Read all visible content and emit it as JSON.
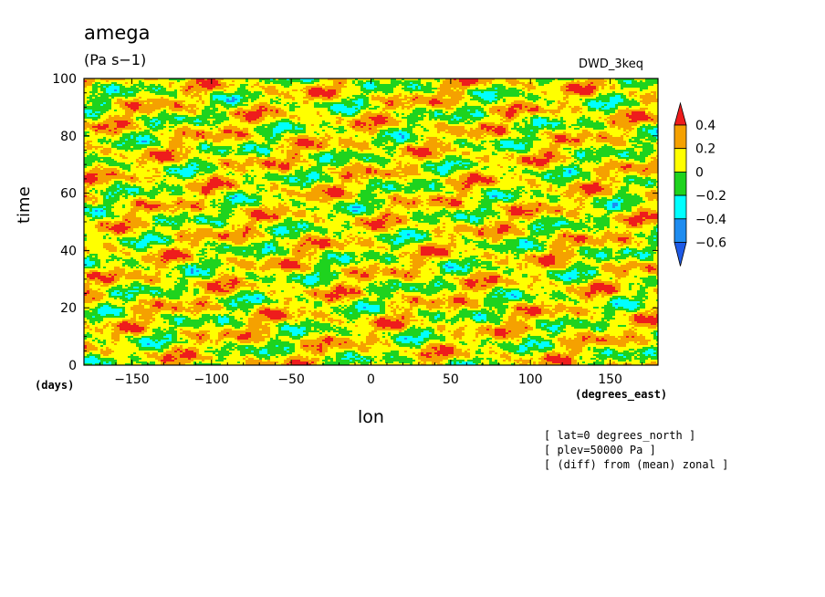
{
  "chart_data": {
    "type": "heatmap",
    "title": "amega",
    "units": "(Pa s−1)",
    "dataset": "DWD_3keq",
    "xlabel": "lon",
    "ylabel": "time",
    "x_unit_label": "(degrees_east)",
    "y_unit_label": "(days)",
    "xlim": [
      -180,
      180
    ],
    "ylim": [
      0,
      100
    ],
    "x_ticks": [
      -150,
      -100,
      -50,
      0,
      50,
      100,
      150
    ],
    "x_tick_labels": [
      "−150",
      "−100",
      "−50",
      "0",
      "50",
      "100",
      "150"
    ],
    "y_ticks": [
      0,
      20,
      40,
      60,
      80,
      100
    ],
    "y_tick_labels": [
      "0",
      "20",
      "40",
      "60",
      "80",
      "100"
    ],
    "colorbar": {
      "levels": [
        0.4,
        0.2,
        0,
        -0.2,
        -0.4,
        -0.6
      ],
      "level_labels": [
        "0.4",
        "0.2",
        "0",
        "−0.2",
        "−0.4",
        "−0.6"
      ],
      "colors": [
        "#ee1c1c",
        "#f5a100",
        "#ffff00",
        "#1ed31e",
        "#00ffff",
        "#1e8cf0",
        "#1e5ae6"
      ]
    },
    "notes": [
      "[ lat=0 degrees_north ]",
      "[ plev=50000 Pa ]",
      "[ (diff) from (mean) zonal ]"
    ]
  }
}
